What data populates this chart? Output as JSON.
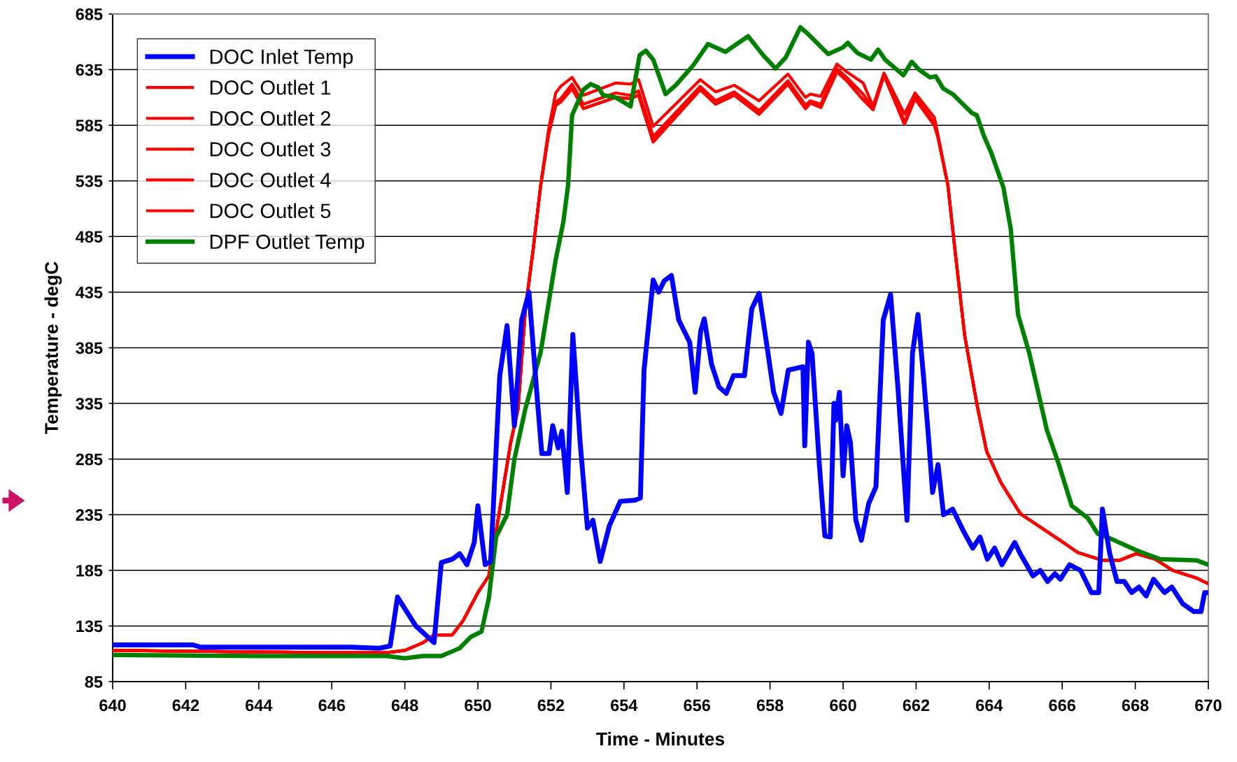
{
  "chart_data": {
    "type": "line",
    "xlabel": "Time - Minutes",
    "ylabel": "Temperature - degC",
    "xlim": [
      640,
      670
    ],
    "xticks": [
      640,
      642,
      644,
      646,
      648,
      650,
      652,
      654,
      656,
      658,
      660,
      662,
      664,
      666,
      668,
      670
    ],
    "ylim": [
      85,
      685
    ],
    "yticks": [
      85,
      135,
      185,
      235,
      285,
      335,
      385,
      435,
      485,
      535,
      585,
      635,
      685
    ],
    "grid": "y",
    "legend": "top left",
    "marker": "none",
    "line_style": "solid",
    "series": [
      {
        "name": "DOC Inlet Temp",
        "color": "#0000ff",
        "x": [
          640,
          642.2,
          642.4,
          646.5,
          647.3,
          647.6,
          647.8,
          648.3,
          648.8,
          649.0,
          649.3,
          649.5,
          649.7,
          649.9,
          650.0,
          650.2,
          650.35,
          650.6,
          650.8,
          651.0,
          651.2,
          651.4,
          651.6,
          651.75,
          651.95,
          652.05,
          652.2,
          652.3,
          652.45,
          652.6,
          652.8,
          653.0,
          653.15,
          653.35,
          653.6,
          653.9,
          654.3,
          654.45,
          654.55,
          654.8,
          654.95,
          655.1,
          655.3,
          655.5,
          655.8,
          655.95,
          656.1,
          656.2,
          656.4,
          656.6,
          656.8,
          657.0,
          657.3,
          657.5,
          657.7,
          657.9,
          658.1,
          658.3,
          658.5,
          658.9,
          658.95,
          659.05,
          659.15,
          659.35,
          659.5,
          659.65,
          659.75,
          659.8,
          659.9,
          660.0,
          660.1,
          660.2,
          660.35,
          660.5,
          660.7,
          660.9,
          661.1,
          661.3,
          661.5,
          661.75,
          661.9,
          662.05,
          662.2,
          662.35,
          662.45,
          662.6,
          662.75,
          663.0,
          663.3,
          663.55,
          663.75,
          663.95,
          664.15,
          664.35,
          664.7,
          664.85,
          665.2,
          665.4,
          665.6,
          665.8,
          665.95,
          666.2,
          666.5,
          666.8,
          667.0,
          667.1,
          667.3,
          667.5,
          667.7,
          667.9,
          668.1,
          668.3,
          668.5,
          668.8,
          669.0,
          669.3,
          669.6,
          669.8,
          669.9,
          670
        ],
        "values": [
          118,
          118,
          116,
          116,
          115,
          117,
          161,
          135,
          120,
          192,
          195,
          200,
          190,
          210,
          243,
          190,
          193,
          360,
          405,
          315,
          410,
          435,
          350,
          290,
          290,
          315,
          295,
          310,
          255,
          397,
          300,
          223,
          230,
          193,
          225,
          247,
          248,
          250,
          365,
          446,
          435,
          445,
          450,
          410,
          390,
          345,
          400,
          411,
          370,
          350,
          344,
          360,
          360,
          420,
          434,
          390,
          345,
          326,
          365,
          368,
          297,
          390,
          380,
          280,
          216,
          215,
          335,
          320,
          345,
          270,
          315,
          300,
          230,
          212,
          245,
          260,
          410,
          433,
          350,
          230,
          380,
          415,
          360,
          300,
          255,
          280,
          235,
          240,
          220,
          205,
          215,
          195,
          205,
          190,
          210,
          200,
          180,
          185,
          175,
          182,
          177,
          190,
          185,
          165,
          165,
          240,
          200,
          175,
          175,
          165,
          170,
          162,
          177,
          165,
          170,
          155,
          148,
          148,
          165,
          165
        ]
      },
      {
        "name": "DOC Outlet 1",
        "color": "#ff0000",
        "x": [
          640,
          646,
          647.5,
          648,
          648.5,
          648.8,
          649.3,
          649.6,
          650.0,
          650.3,
          650.6,
          650.9,
          651.1,
          651.3,
          651.52,
          651.72,
          651.93,
          652.13,
          652.27,
          652.58,
          652.89,
          653.77,
          654.18,
          654.4,
          654.8,
          656.09,
          656.51,
          657.02,
          657.7,
          658.49,
          658.97,
          659.1,
          659.39,
          659.83,
          660.1,
          660.55,
          660.82,
          661.12,
          661.68,
          661.97,
          662.5,
          662.6,
          662.87,
          663.07,
          663.33,
          663.66,
          663.93,
          664.32,
          664.85,
          666.03,
          666.43,
          667.1,
          667.57,
          668.03,
          668.55,
          669.02,
          669.68,
          670
        ],
        "values": [
          113,
          111,
          111,
          113,
          120,
          127,
          127,
          140,
          165,
          180,
          240,
          300,
          330,
          419,
          475,
          531,
          580,
          614,
          620,
          628,
          612,
          623,
          622,
          626,
          584,
          626,
          615,
          621,
          607,
          631,
          610,
          613,
          611,
          640,
          633,
          623,
          602,
          632,
          595,
          614,
          592,
          576,
          531,
          471,
          396,
          335,
          292,
          264,
          236,
          210,
          201,
          194,
          194,
          200,
          195,
          185,
          178,
          173
        ]
      },
      {
        "name": "DOC Outlet 2",
        "color": "#ff0000",
        "x": [
          640,
          646,
          647.5,
          648,
          648.5,
          648.8,
          649.3,
          649.6,
          650.0,
          650.3,
          650.6,
          650.9,
          651.1,
          651.3,
          651.52,
          651.72,
          651.93,
          652.13,
          652.27,
          652.58,
          652.89,
          653.77,
          654.18,
          654.4,
          654.8,
          656.09,
          656.51,
          657.02,
          657.7,
          658.49,
          658.97,
          659.1,
          659.39,
          659.83,
          660.1,
          660.55,
          660.82,
          661.12,
          661.68,
          661.97,
          662.5,
          662.6,
          662.87,
          663.07,
          663.33,
          663.66,
          663.93,
          664.32,
          664.85,
          666.03,
          666.43,
          667.1,
          667.57,
          668.03,
          668.55,
          669.02,
          669.68,
          670
        ],
        "values": [
          113,
          111,
          111,
          113,
          120,
          127,
          127,
          140,
          165,
          180,
          240,
          300,
          330,
          419,
          475,
          531,
          576,
          606,
          609,
          622,
          604,
          614,
          612,
          616,
          575,
          620,
          607,
          615,
          598,
          625,
          603,
          607,
          604,
          636,
          628,
          613,
          600,
          631,
          588,
          611,
          587,
          575,
          531,
          471,
          396,
          335,
          292,
          264,
          236,
          210,
          201,
          194,
          194,
          200,
          195,
          185,
          178,
          173
        ]
      },
      {
        "name": "DOC Outlet 3",
        "color": "#ff0000",
        "x": [
          640,
          646,
          647.5,
          648,
          648.5,
          648.8,
          649.3,
          649.6,
          650.0,
          650.3,
          650.6,
          650.9,
          651.1,
          651.3,
          651.52,
          651.72,
          651.93,
          652.13,
          652.27,
          652.58,
          652.89,
          653.77,
          654.18,
          654.4,
          654.8,
          656.09,
          656.51,
          657.02,
          657.7,
          658.49,
          658.97,
          659.1,
          659.39,
          659.83,
          660.1,
          660.55,
          660.82,
          661.12,
          661.68,
          661.97,
          662.5,
          662.6,
          662.87,
          663.07,
          663.33,
          663.66,
          663.93,
          664.32,
          664.85,
          666.03,
          666.43,
          667.1,
          667.57,
          668.03,
          668.55,
          669.02,
          669.68,
          670
        ],
        "values": [
          113,
          111,
          111,
          113,
          120,
          127,
          127,
          140,
          165,
          180,
          240,
          300,
          330,
          419,
          475,
          531,
          576,
          603,
          606,
          618,
          600,
          610,
          609,
          612,
          570,
          617,
          604,
          612,
          595,
          622,
          600,
          605,
          601,
          633,
          625,
          608,
          599,
          630,
          586,
          609,
          585,
          574,
          531,
          471,
          396,
          335,
          292,
          264,
          236,
          210,
          201,
          194,
          194,
          200,
          195,
          185,
          178,
          173
        ]
      },
      {
        "name": "DOC Outlet 4",
        "color": "#ff0000",
        "x": [
          640,
          646,
          647.5,
          648,
          648.5,
          648.8,
          649.3,
          649.6,
          650.0,
          650.3,
          650.6,
          650.9,
          651.1,
          651.3,
          651.52,
          651.72,
          651.93,
          652.13,
          652.27,
          652.58,
          652.89,
          653.77,
          654.18,
          654.4,
          654.8,
          656.09,
          656.51,
          657.02,
          657.7,
          658.49,
          658.97,
          659.1,
          659.39,
          659.83,
          660.1,
          660.55,
          660.82,
          661.12,
          661.68,
          661.97,
          662.5,
          662.6,
          662.87,
          663.07,
          663.33,
          663.66,
          663.93,
          664.32,
          664.85,
          666.03,
          666.43,
          667.1,
          667.57,
          668.03,
          668.55,
          669.02,
          669.68,
          670
        ],
        "values": [
          113,
          111,
          111,
          113,
          120,
          127,
          127,
          140,
          165,
          180,
          240,
          300,
          330,
          419,
          475,
          531,
          576,
          603,
          606,
          618,
          600,
          610,
          609,
          612,
          572,
          617,
          604,
          612,
          595,
          622,
          600,
          605,
          601,
          633,
          625,
          608,
          599,
          630,
          586,
          609,
          585,
          574,
          531,
          471,
          396,
          335,
          292,
          264,
          236,
          210,
          201,
          194,
          194,
          200,
          195,
          185,
          178,
          173
        ]
      },
      {
        "name": "DOC Outlet 5",
        "color": "#ff0000",
        "x": [
          640,
          646,
          647.5,
          648,
          648.5,
          648.8,
          649.3,
          649.6,
          650.0,
          650.3,
          650.6,
          650.9,
          651.1,
          651.3,
          651.52,
          651.72,
          651.93,
          652.13,
          652.27,
          652.58,
          652.89,
          653.77,
          654.18,
          654.4,
          654.8,
          656.09,
          656.51,
          657.02,
          657.7,
          658.49,
          658.97,
          659.1,
          659.39,
          659.83,
          660.1,
          660.55,
          660.82,
          661.12,
          661.68,
          661.97,
          662.5,
          662.6,
          662.87,
          663.07,
          663.33,
          663.66,
          663.93,
          664.32,
          664.85,
          666.03,
          666.43,
          667.1,
          667.57,
          668.03,
          668.55,
          669.02,
          669.68,
          670
        ],
        "values": [
          113,
          111,
          111,
          113,
          120,
          127,
          127,
          140,
          165,
          180,
          240,
          300,
          330,
          419,
          475,
          531,
          576,
          603,
          606,
          618,
          600,
          610,
          609,
          612,
          570,
          617,
          604,
          612,
          595,
          622,
          600,
          605,
          601,
          633,
          625,
          608,
          599,
          630,
          586,
          609,
          585,
          574,
          531,
          471,
          396,
          335,
          292,
          264,
          236,
          210,
          201,
          194,
          194,
          200,
          195,
          185,
          178,
          173
        ]
      },
      {
        "name": "DPF Outlet Temp",
        "color": "#008000",
        "x": [
          640,
          644,
          647.5,
          648,
          648.5,
          649.0,
          649.5,
          649.8,
          650.1,
          650.3,
          650.5,
          650.8,
          651.0,
          651.3,
          651.72,
          652.13,
          652.34,
          652.47,
          652.58,
          652.89,
          653.09,
          653.3,
          653.43,
          653.77,
          654.18,
          654.43,
          654.6,
          654.8,
          655.14,
          655.42,
          655.9,
          656.3,
          656.78,
          657.4,
          657.81,
          658.15,
          658.43,
          658.83,
          659.04,
          659.59,
          660.0,
          660.13,
          660.39,
          660.76,
          660.96,
          661.15,
          661.65,
          661.88,
          662.08,
          662.38,
          662.54,
          662.74,
          663.0,
          663.53,
          663.66,
          663.86,
          664.06,
          664.39,
          664.59,
          664.79,
          665.1,
          665.58,
          665.9,
          666.26,
          666.7,
          666.97,
          667.36,
          668.03,
          668.68,
          669.68,
          670
        ],
        "values": [
          109,
          108,
          108,
          106,
          108,
          108,
          115,
          125,
          130,
          160,
          215,
          235,
          285,
          330,
          381,
          464,
          498,
          531,
          594,
          617,
          622,
          619,
          612,
          610,
          602,
          648,
          652,
          644,
          613,
          621,
          639,
          658,
          651,
          665,
          648,
          636,
          646,
          673,
          667,
          649,
          655,
          659,
          650,
          644,
          653,
          644,
          630,
          642,
          635,
          628,
          629,
          618,
          613,
          596,
          594,
          575,
          560,
          529,
          492,
          415,
          380,
          311,
          281,
          243,
          232,
          218,
          213,
          203,
          195,
          194,
          190
        ]
      }
    ]
  }
}
